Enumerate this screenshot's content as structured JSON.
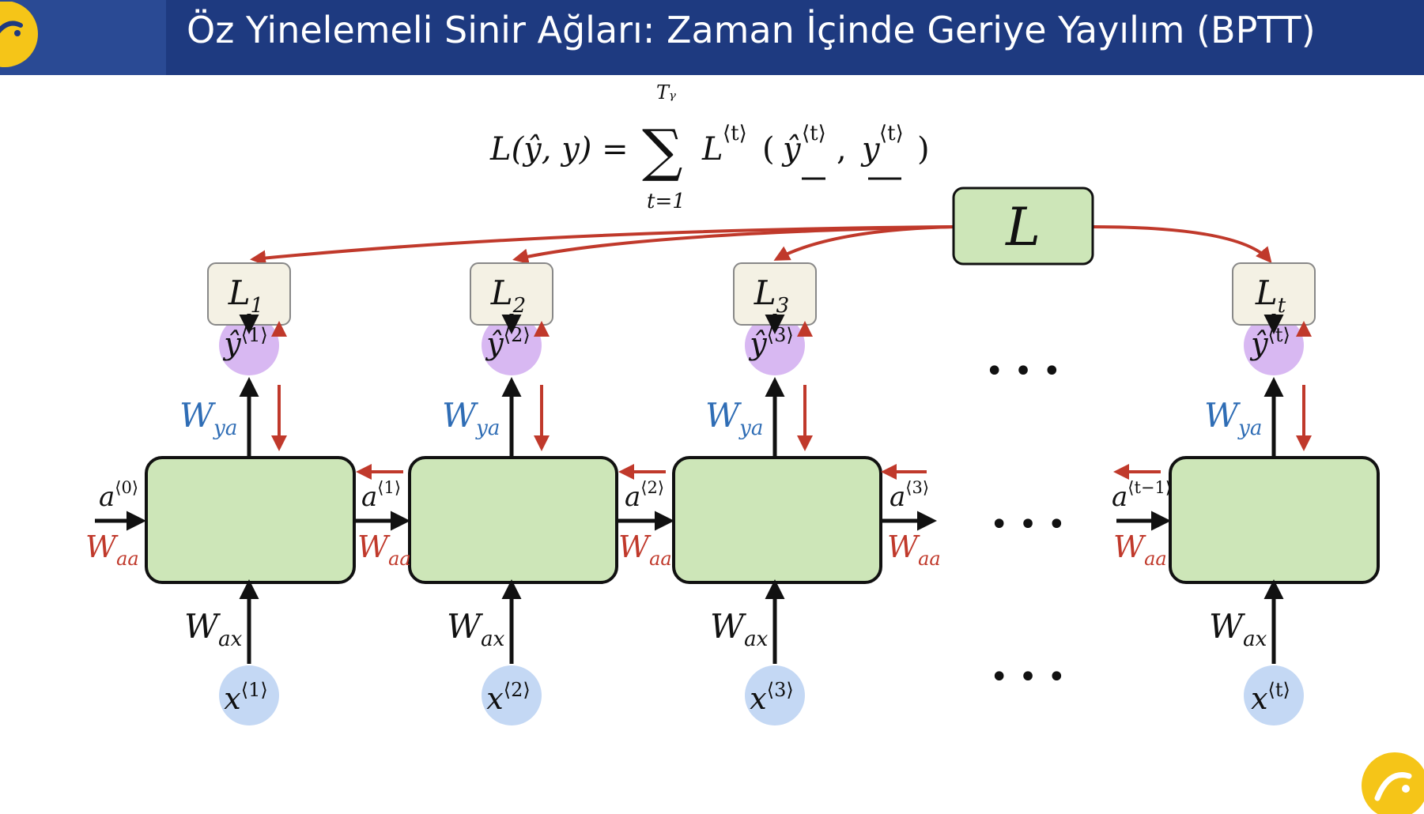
{
  "header": {
    "title": "Öz Yinelemeli Sinir Ağları: Zaman İçinde Geriye Yayılım (BPTT)"
  },
  "formula": {
    "lhs": "L(ŷ, y) =",
    "sum_symbol": "∑",
    "upper": "Tᵧ",
    "lower": "t=1",
    "term": "L",
    "term_sup": "⟨t⟩",
    "args_open": "(",
    "yhat": "ŷ",
    "yhat_sup": "⟨t⟩",
    "comma": ",",
    "y": "y",
    "y_sup": "⟨t⟩",
    "args_close": ")"
  },
  "total_loss": {
    "label": "L"
  },
  "loss_nodes": [
    {
      "base": "L",
      "sub": "1"
    },
    {
      "base": "L",
      "sub": "2"
    },
    {
      "base": "L",
      "sub": "3"
    },
    {
      "base": "L",
      "sub": "t"
    }
  ],
  "output_nodes": [
    {
      "base": "ŷ",
      "sup": "⟨1⟩"
    },
    {
      "base": "ŷ",
      "sup": "⟨2⟩"
    },
    {
      "base": "ŷ",
      "sup": "⟨3⟩"
    },
    {
      "base": "ŷ",
      "sup": "⟨t⟩"
    }
  ],
  "input_nodes": [
    {
      "base": "x",
      "sup": "⟨1⟩"
    },
    {
      "base": "x",
      "sup": "⟨2⟩"
    },
    {
      "base": "x",
      "sup": "⟨3⟩"
    },
    {
      "base": "x",
      "sup": "⟨t⟩"
    }
  ],
  "activations": [
    {
      "base": "a",
      "sup": "⟨0⟩"
    },
    {
      "base": "a",
      "sup": "⟨1⟩"
    },
    {
      "base": "a",
      "sup": "⟨2⟩"
    },
    {
      "base": "a",
      "sup": "⟨3⟩"
    },
    {
      "base": "a",
      "sup": "⟨t−1⟩"
    }
  ],
  "weights": {
    "wya": {
      "base": "W",
      "sub": "ya"
    },
    "waa": {
      "base": "W",
      "sub": "aa"
    },
    "wax": {
      "base": "W",
      "sub": "ax"
    }
  },
  "ellipsis": "• • •",
  "colors": {
    "header_bg": "#1e3a80",
    "cell_fill": "#cde6b8",
    "loss_fill": "#f4f1e4",
    "output_fill": "#d8b8f2",
    "input_fill": "#c4d8f4",
    "backprop_red": "#c0392b",
    "weight_blue": "#2f6db5",
    "logo_yellow": "#f5c518"
  }
}
